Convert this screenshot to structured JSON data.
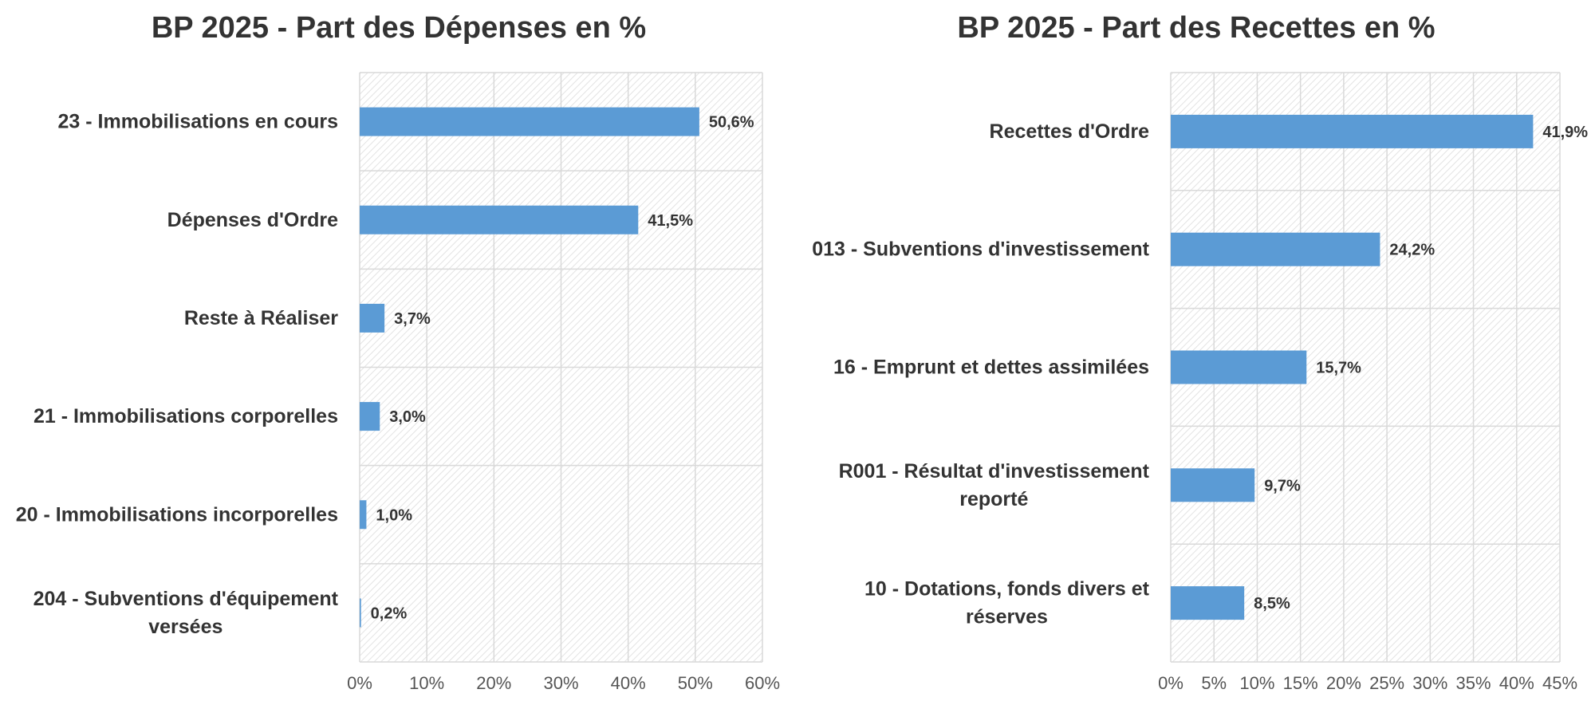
{
  "chart_data": [
    {
      "type": "bar",
      "orientation": "horizontal",
      "title": "BP 2025 - Part des Dépenses en %",
      "categories": [
        [
          "23 - Immobilisations en cours"
        ],
        [
          "Dépenses d'Ordre"
        ],
        [
          "Reste à Réaliser"
        ],
        [
          "21 - Immobilisations corporelles"
        ],
        [
          "20 - Immobilisations incorporelles"
        ],
        [
          "204 - Subventions d'équipement",
          "versées"
        ]
      ],
      "values": [
        50.6,
        41.5,
        3.7,
        3.0,
        1.0,
        0.2
      ],
      "value_labels": [
        "50,6%",
        "41,5%",
        "3,7%",
        "3,0%",
        "1,0%",
        "0,2%"
      ],
      "xlim": [
        0,
        60
      ],
      "x_ticks": [
        0,
        10,
        20,
        30,
        40,
        50,
        60
      ],
      "x_tick_labels": [
        "0%",
        "10%",
        "20%",
        "30%",
        "40%",
        "50%",
        "60%"
      ],
      "grid": true,
      "bar_color": "#5b9bd5"
    },
    {
      "type": "bar",
      "orientation": "horizontal",
      "title": "BP 2025 - Part des Recettes en %",
      "categories": [
        [
          "Recettes d'Ordre"
        ],
        [
          "013 - Subventions d'investissement"
        ],
        [
          "16 - Emprunt et dettes assimilées"
        ],
        [
          "R001 - Résultat d'investissement",
          "reporté"
        ],
        [
          "10 - Dotations, fonds divers et",
          "réserves"
        ]
      ],
      "values": [
        41.9,
        24.2,
        15.7,
        9.7,
        8.5
      ],
      "value_labels": [
        "41,9%",
        "24,2%",
        "15,7%",
        "9,7%",
        "8,5%"
      ],
      "xlim": [
        0,
        45
      ],
      "x_ticks": [
        0,
        5,
        10,
        15,
        20,
        25,
        30,
        35,
        40,
        45
      ],
      "x_tick_labels": [
        "0%",
        "5%",
        "10%",
        "15%",
        "20%",
        "25%",
        "30%",
        "35%",
        "40%",
        "45%"
      ],
      "grid": true,
      "bar_color": "#5b9bd5"
    }
  ],
  "colors": {
    "bar": "#5b9bd5",
    "grid": "#d9d9d9",
    "text": "#333333"
  }
}
